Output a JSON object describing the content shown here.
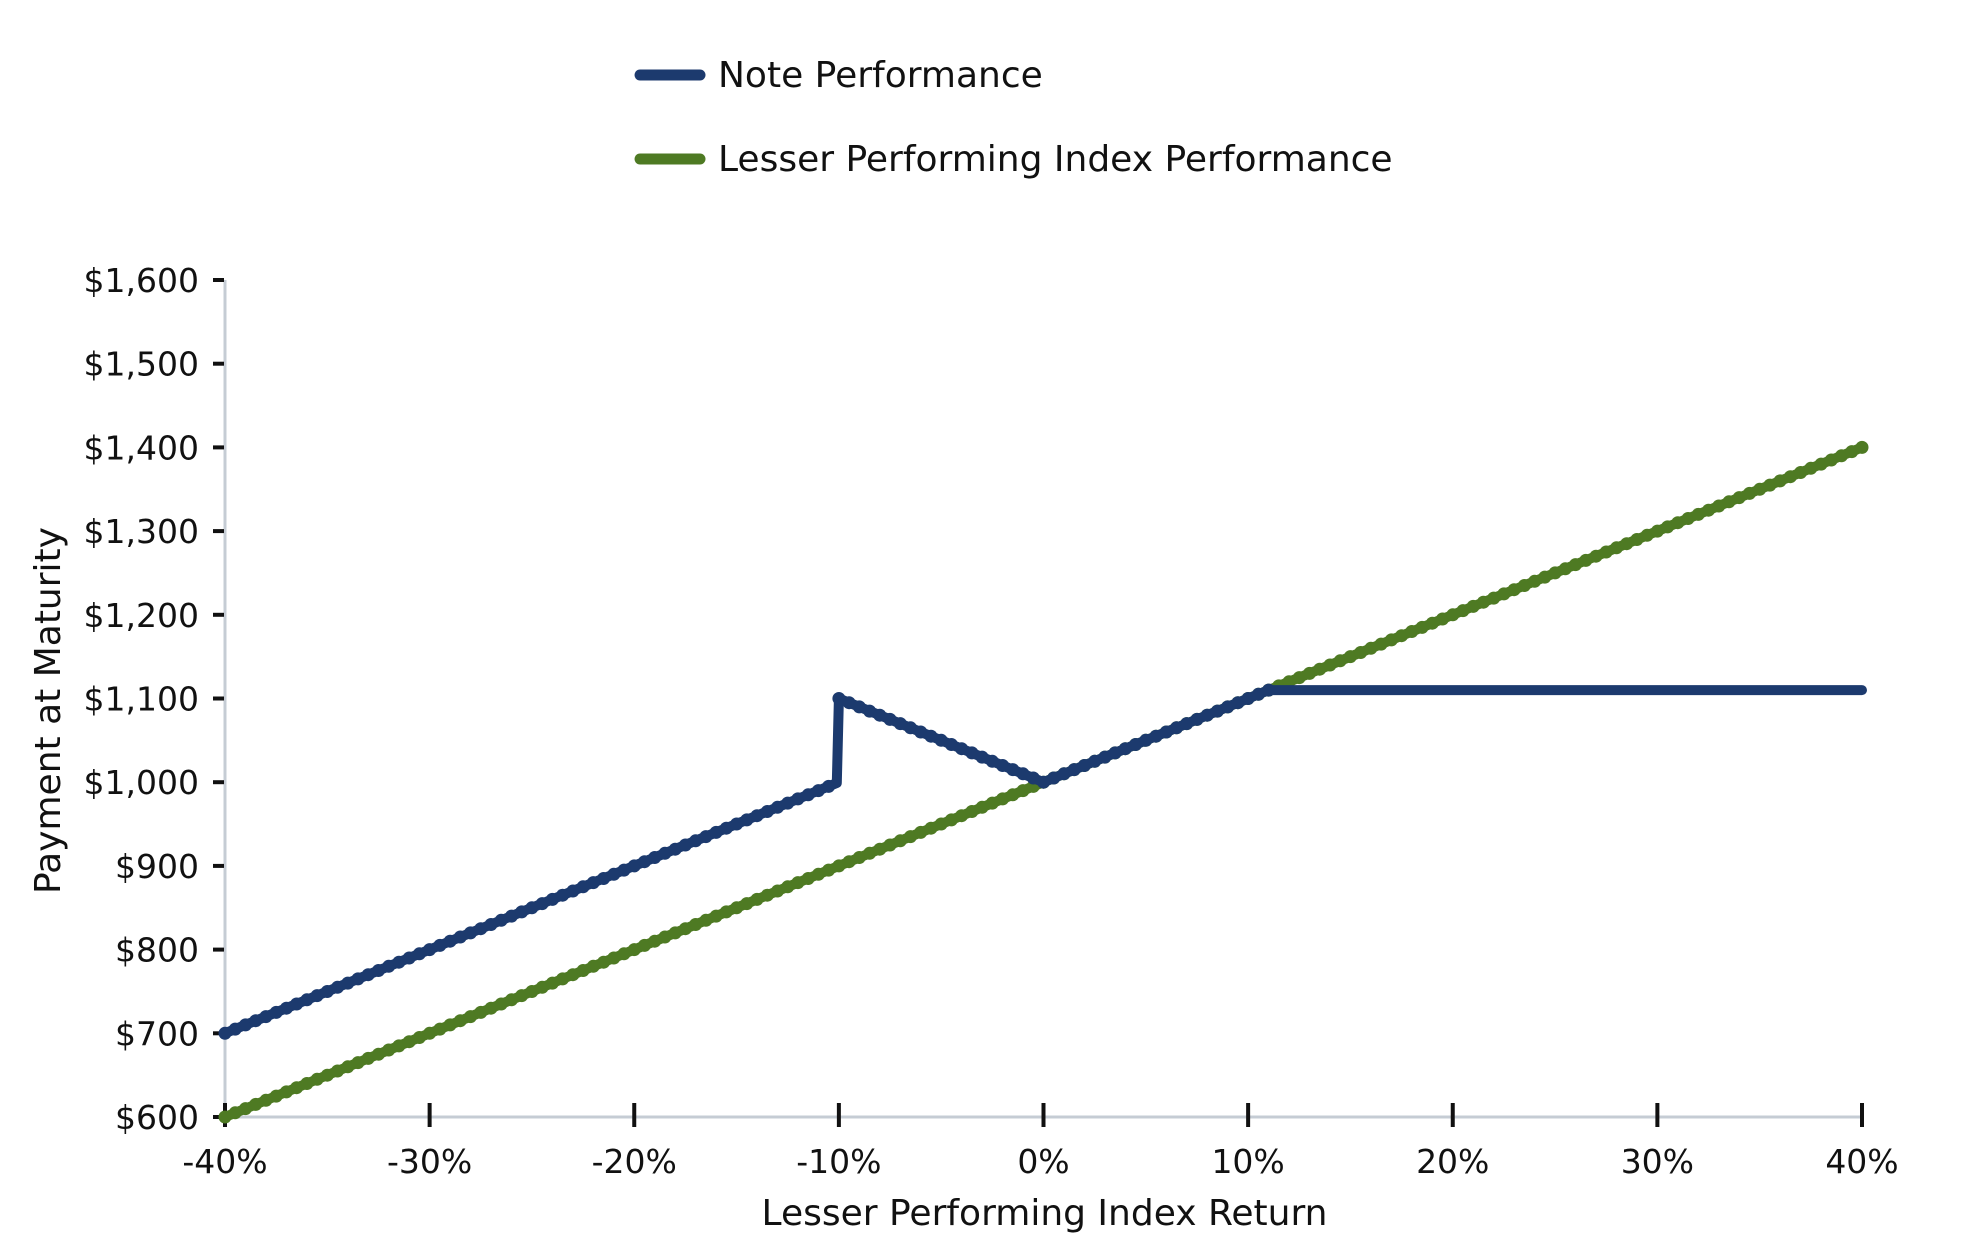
{
  "chart_data": {
    "type": "line",
    "xlabel": "Lesser Performing Index Return",
    "ylabel": "Payment at Maturity",
    "xlim": [
      -40,
      40
    ],
    "ylim": [
      600,
      1600
    ],
    "x_ticks": [
      -40,
      -30,
      -20,
      -10,
      0,
      10,
      20,
      30,
      40
    ],
    "x_tick_labels": [
      "-40%",
      "-30%",
      "-20%",
      "-10%",
      "0%",
      "10%",
      "20%",
      "30%",
      "40%"
    ],
    "y_ticks": [
      600,
      700,
      800,
      900,
      1000,
      1100,
      1200,
      1300,
      1400,
      1500,
      1600
    ],
    "y_tick_labels": [
      "$600",
      "$700",
      "$800",
      "$900",
      "$1,000",
      "$1,100",
      "$1,200",
      "$1,300",
      "$1,400",
      "$1,500",
      "$1,600"
    ],
    "grid": false,
    "legend_position": "top-center",
    "series": [
      {
        "name": "Note Performance",
        "color": "#1c3a6e",
        "points": [
          [
            -40,
            700
          ],
          [
            -10.1,
            999
          ],
          [
            -10,
            1100
          ],
          [
            0,
            1000
          ],
          [
            11,
            1110
          ],
          [
            40,
            1110
          ]
        ]
      },
      {
        "name": "Lesser Performing Index Performance",
        "color": "#4e7a23",
        "points": [
          [
            -40,
            600
          ],
          [
            40,
            1400
          ]
        ]
      }
    ]
  }
}
